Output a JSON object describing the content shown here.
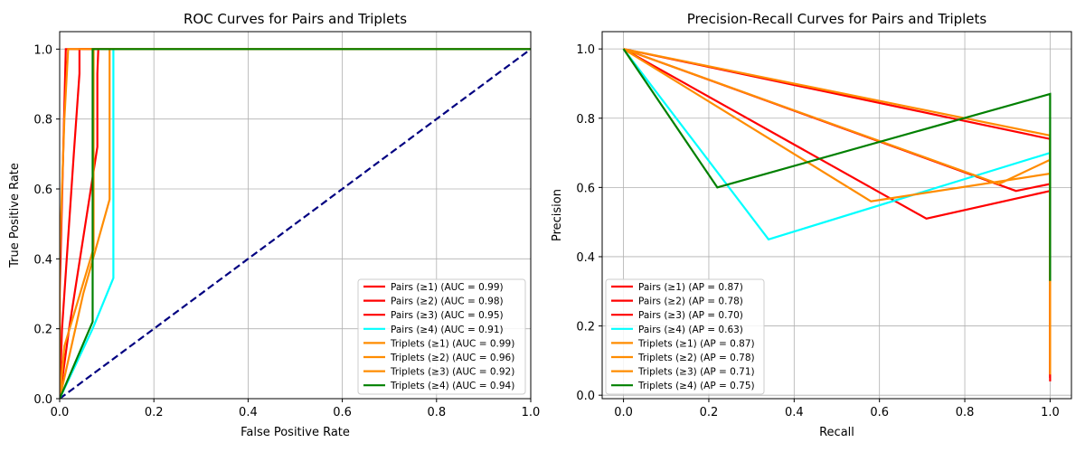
{
  "chart_data": [
    {
      "type": "line",
      "title": "ROC Curves for Pairs and Triplets",
      "xlabel": "False Positive Rate",
      "ylabel": "True Positive Rate",
      "xlim": [
        0,
        1
      ],
      "ylim": [
        0,
        1.05
      ],
      "xticks": [
        0,
        0.2,
        0.4,
        0.6,
        0.8,
        1.0
      ],
      "xtick_labels": [
        "0.0",
        "0.2",
        "0.4",
        "0.6",
        "0.8",
        "1.0"
      ],
      "yticks": [
        0,
        0.2,
        0.4,
        0.6,
        0.8,
        1.0
      ],
      "ytick_labels": [
        "0.0",
        "0.2",
        "0.4",
        "0.6",
        "0.8",
        "1.0"
      ],
      "grid": true,
      "legend_position": "lower-right",
      "series": [
        {
          "name": "Pairs (≥1) (AUC = 0.99)",
          "color": "#ff0000",
          "x": [
            0,
            0,
            0.013,
            0.015,
            1
          ],
          "y": [
            0,
            0.3,
            1,
            1,
            1
          ]
        },
        {
          "name": "Pairs (≥2) (AUC = 0.98)",
          "color": "#ff0000",
          "x": [
            0,
            0.005,
            0.03,
            0.042,
            0.042,
            1
          ],
          "y": [
            0,
            0.2,
            0.7,
            0.93,
            1,
            1
          ]
        },
        {
          "name": "Pairs (≥3) (AUC = 0.95)",
          "color": "#ff0000",
          "x": [
            0,
            0.02,
            0.08,
            0.08,
            0.082,
            1
          ],
          "y": [
            0,
            0.2,
            0.72,
            0.93,
            1,
            1
          ]
        },
        {
          "name": "Pairs (≥4) (AUC = 0.91)",
          "color": "#00ffff",
          "x": [
            0,
            0.07,
            0.114,
            0.114,
            1
          ],
          "y": [
            0,
            0.2,
            0.345,
            1,
            1
          ]
        },
        {
          "name": "Triplets (≥1) (AUC = 0.99)",
          "color": "#ff8c00",
          "x": [
            0,
            0,
            0.01,
            0.018,
            1
          ],
          "y": [
            0,
            0.4,
            0.8,
            1,
            1
          ]
        },
        {
          "name": "Triplets (≥2) (AUC = 0.96)",
          "color": "#ff8c00",
          "x": [
            0,
            0.01,
            0.072,
            0.072,
            1
          ],
          "y": [
            0,
            0.15,
            0.43,
            1,
            1
          ]
        },
        {
          "name": "Triplets (≥3) (AUC = 0.92)",
          "color": "#ff8c00",
          "x": [
            0,
            0.05,
            0.106,
            0.106,
            1
          ],
          "y": [
            0,
            0.3,
            0.57,
            1,
            1
          ]
        },
        {
          "name": "Triplets (≥4) (AUC = 0.94)",
          "color": "#008000",
          "x": [
            0,
            0.07,
            0.07,
            0.07,
            1
          ],
          "y": [
            0,
            0.22,
            0.7,
            1,
            1
          ]
        }
      ],
      "reference_line": {
        "color": "#000080",
        "style": "dashed",
        "x": [
          0,
          1
        ],
        "y": [
          0,
          1
        ]
      }
    },
    {
      "type": "line",
      "title": "Precision-Recall Curves for Pairs and Triplets",
      "xlabel": "Recall",
      "ylabel": "Precision",
      "xlim": [
        -0.05,
        1.05
      ],
      "ylim": [
        -0.01,
        1.05
      ],
      "xticks": [
        0,
        0.2,
        0.4,
        0.6,
        0.8,
        1.0
      ],
      "xtick_labels": [
        "0.0",
        "0.2",
        "0.4",
        "0.6",
        "0.8",
        "1.0"
      ],
      "yticks": [
        0,
        0.2,
        0.4,
        0.6,
        0.8,
        1.0
      ],
      "ytick_labels": [
        "0.0",
        "0.2",
        "0.4",
        "0.6",
        "0.8",
        "1.0"
      ],
      "grid": true,
      "legend_position": "lower-left",
      "series": [
        {
          "name": "Pairs (≥1) (AP = 0.87)",
          "color": "#ff0000",
          "x": [
            0,
            1,
            1
          ],
          "y": [
            1,
            0.74,
            0.05
          ]
        },
        {
          "name": "Pairs (≥2) (AP = 0.78)",
          "color": "#ff0000",
          "x": [
            0,
            0.71,
            1,
            1
          ],
          "y": [
            1,
            0.51,
            0.59,
            0.04
          ]
        },
        {
          "name": "Pairs (≥3) (AP = 0.70)",
          "color": "#ff0000",
          "x": [
            0,
            0.92,
            1,
            1
          ],
          "y": [
            1,
            0.59,
            0.61,
            0.06
          ]
        },
        {
          "name": "Pairs (≥4) (AP = 0.63)",
          "color": "#00ffff",
          "x": [
            0,
            0.34,
            1,
            1
          ],
          "y": [
            1,
            0.45,
            0.7,
            0.3
          ]
        },
        {
          "name": "Triplets (≥1) (AP = 0.87)",
          "color": "#ff8c00",
          "x": [
            0,
            1,
            1
          ],
          "y": [
            1,
            0.75,
            0.1
          ]
        },
        {
          "name": "Triplets (≥2) (AP = 0.78)",
          "color": "#ff8c00",
          "x": [
            0,
            0.58,
            1,
            1
          ],
          "y": [
            1,
            0.56,
            0.64,
            0.07
          ]
        },
        {
          "name": "Triplets (≥3) (AP = 0.71)",
          "color": "#ff8c00",
          "x": [
            0,
            0.88,
            1,
            1
          ],
          "y": [
            1,
            0.61,
            0.68,
            0.06
          ]
        },
        {
          "name": "Triplets (≥4) (AP = 0.75)",
          "color": "#008000",
          "x": [
            0,
            0.22,
            1,
            1
          ],
          "y": [
            1,
            0.6,
            0.87,
            0.33
          ]
        }
      ]
    }
  ]
}
